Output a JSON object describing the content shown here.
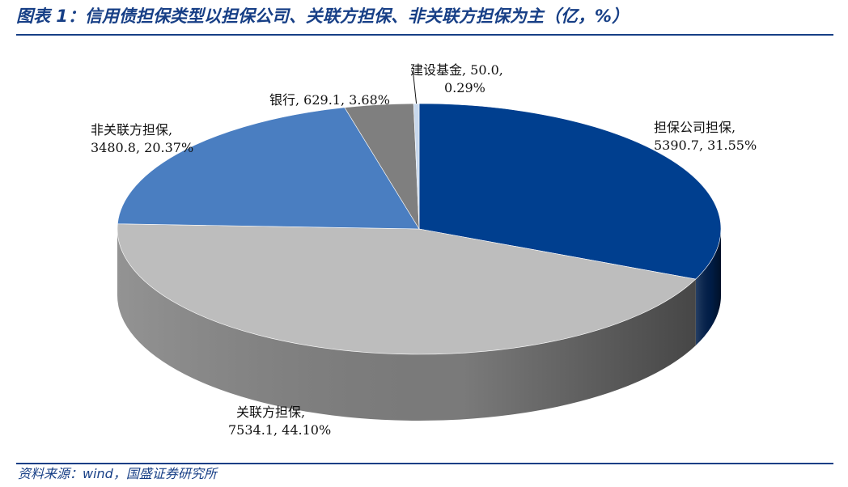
{
  "header": {
    "title": "图表 1：信用债担保类型以担保公司、关联方担保、非关联方担保为主（亿，%）"
  },
  "footer": {
    "source": "资料来源：wind，国盛证券研究所"
  },
  "chart_data": {
    "type": "pie",
    "style": "3d",
    "title": "",
    "slices": [
      {
        "label": "担保公司担保",
        "value": 5390.7,
        "percent": "31.55%",
        "color": "#003F8F",
        "side_color": "#001E4A"
      },
      {
        "label": "关联方担保",
        "value": 7534.1,
        "percent": "44.10%",
        "color": "#BDBDBD",
        "side_color": "#808080"
      },
      {
        "label": "非关联方担保",
        "value": 3480.8,
        "percent": "20.37%",
        "color": "#4A7EC1",
        "side_color": "#2B5A95"
      },
      {
        "label": "银行",
        "value": 629.1,
        "percent": "3.68%",
        "color": "#7F7F7F",
        "side_color": "#555555"
      },
      {
        "label": "建设基金",
        "value": 50.0,
        "percent": "0.29%",
        "color": "#C8D8EC",
        "side_color": "#9FB3CC"
      }
    ],
    "data_labels": [
      {
        "line1": "担保公司担保,",
        "line2": "5390.7, 31.55%"
      },
      {
        "line1": "关联方担保,",
        "line2": "7534.1, 44.10%"
      },
      {
        "line1": "非关联方担保,",
        "line2": "3480.8, 20.37%"
      },
      {
        "line1": "银行, 629.1, 3.68%",
        "line2": ""
      },
      {
        "line1": "建设基金, 50.0,",
        "line2": "0.29%"
      }
    ]
  }
}
